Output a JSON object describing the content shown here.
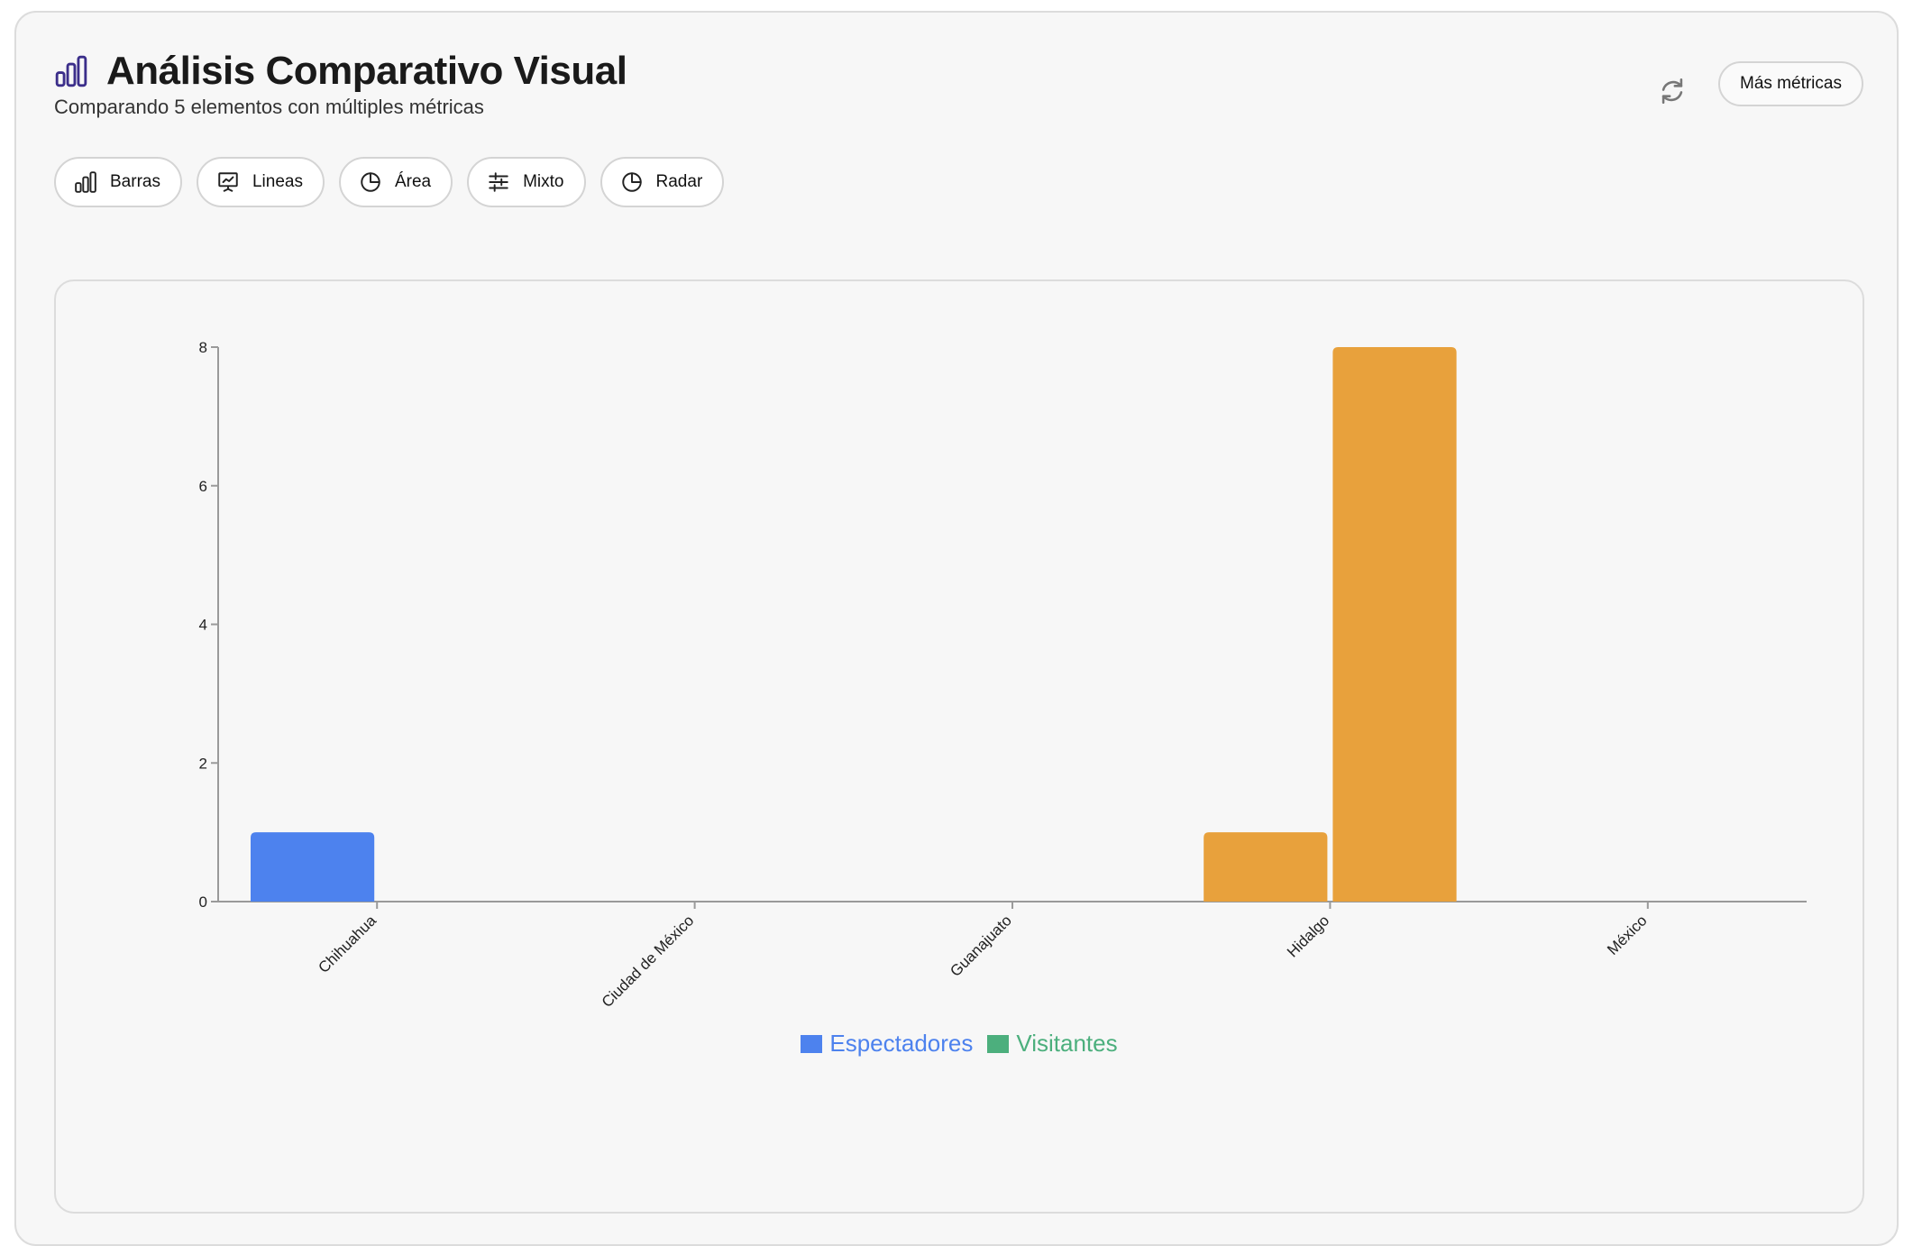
{
  "header": {
    "title": "Análisis Comparativo Visual",
    "subtitle": "Comparando 5 elementos con múltiples métricas",
    "more_label": "Más métricas"
  },
  "tabs": [
    {
      "label": "Barras",
      "icon": "bar-chart-icon"
    },
    {
      "label": "Lineas",
      "icon": "presentation-chart-icon"
    },
    {
      "label": "Área",
      "icon": "pie-chart-icon"
    },
    {
      "label": "Mixto",
      "icon": "sliders-icon"
    },
    {
      "label": "Radar",
      "icon": "pie-chart-icon"
    }
  ],
  "colors": {
    "accent": "#3b2e8a",
    "espectadores": "#4d82ee",
    "visitantes": "#4caf7d",
    "highlight": "#e8a13c"
  },
  "chart_data": {
    "type": "bar",
    "categories": [
      "Chihuahua",
      "Ciudad de México",
      "Guanajuato",
      "Hidalgo",
      "México"
    ],
    "series": [
      {
        "name": "Espectadores",
        "values": [
          1,
          0,
          0,
          1,
          0
        ]
      },
      {
        "name": "Visitantes",
        "values": [
          0,
          0,
          0,
          8,
          0
        ]
      }
    ],
    "bar_colors": [
      [
        "#4d82ee",
        null
      ],
      [
        null,
        null
      ],
      [
        null,
        null
      ],
      [
        "#e8a13c",
        "#e8a13c"
      ],
      [
        null,
        null
      ]
    ],
    "ylim": [
      0,
      8
    ],
    "yticks": [
      0,
      2,
      4,
      6,
      8
    ],
    "grid": false,
    "legend_position": "bottom-center"
  }
}
